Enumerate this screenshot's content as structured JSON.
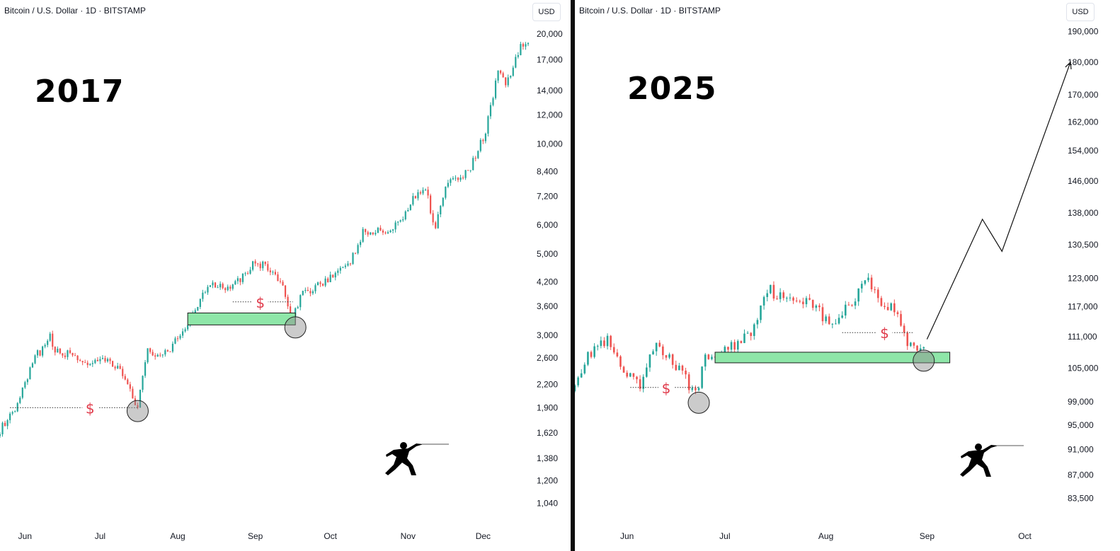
{
  "panels": [
    {
      "title": "Bitcoin / U.S. Dollar · 1D · BITSTAMP",
      "currency_button": "USD",
      "year_label": "2017",
      "dollar_labels": [
        "$",
        "$"
      ]
    },
    {
      "title": "Bitcoin / U.S. Dollar · 1D · BITSTAMP",
      "currency_button": "USD",
      "year_label": "2025",
      "dollar_labels": [
        "$",
        "$"
      ]
    }
  ],
  "colors": {
    "up": "#26a69a",
    "down": "#ef5350",
    "zone": "#8ee6a8",
    "dollar": "#e03b4b"
  },
  "chart_data": [
    {
      "type": "candlestick",
      "title": "Bitcoin / U.S. Dollar · 1D · BITSTAMP",
      "y_scale": "log",
      "ylim": [
        950,
        21000
      ],
      "y_ticks": [
        "20,000",
        "17,000",
        "14,000",
        "12,000",
        "10,000",
        "8,400",
        "7,200",
        "6,000",
        "5,000",
        "4,200",
        "3,600",
        "3,000",
        "2,600",
        "2,200",
        "1,900",
        "1,620",
        "1,380",
        "1,200",
        "1,040"
      ],
      "x_ticks": [
        "Jun",
        "Jul",
        "Aug",
        "Sep",
        "Oct",
        "Nov",
        "Dec"
      ],
      "x_range": [
        "2017-05-22",
        "2017-12-19"
      ],
      "price_path": [
        [
          "2017-05-22",
          1650
        ],
        [
          "2017-05-28",
          1850
        ],
        [
          "2017-06-05",
          2600
        ],
        [
          "2017-06-11",
          2950
        ],
        [
          "2017-06-13",
          2700
        ],
        [
          "2017-06-20",
          2650
        ],
        [
          "2017-06-27",
          2480
        ],
        [
          "2017-07-04",
          2550
        ],
        [
          "2017-07-10",
          2350
        ],
        [
          "2017-07-16",
          1920
        ],
        [
          "2017-07-20",
          2700
        ],
        [
          "2017-07-28",
          2650
        ],
        [
          "2017-08-05",
          3250
        ],
        [
          "2017-08-14",
          4200
        ],
        [
          "2017-08-20",
          4050
        ],
        [
          "2017-08-26",
          4300
        ],
        [
          "2017-09-01",
          4750
        ],
        [
          "2017-09-07",
          4550
        ],
        [
          "2017-09-12",
          4100
        ],
        [
          "2017-09-15",
          3250
        ],
        [
          "2017-09-20",
          3900
        ],
        [
          "2017-09-30",
          4300
        ],
        [
          "2017-10-08",
          4600
        ],
        [
          "2017-10-14",
          5700
        ],
        [
          "2017-10-26",
          5800
        ],
        [
          "2017-11-05",
          7400
        ],
        [
          "2017-11-08",
          7500
        ],
        [
          "2017-11-12",
          5900
        ],
        [
          "2017-11-16",
          7800
        ],
        [
          "2017-11-25",
          8400
        ],
        [
          "2017-12-02",
          10800
        ],
        [
          "2017-12-07",
          16000
        ],
        [
          "2017-12-10",
          14500
        ],
        [
          "2017-12-16",
          18500
        ],
        [
          "2017-12-19",
          19000
        ]
      ],
      "support_zone": [
        3200,
        3450
      ],
      "annotations": [
        "$",
        "$"
      ]
    },
    {
      "type": "candlestick",
      "title": "Bitcoin / U.S. Dollar · 1D · BITSTAMP",
      "y_scale": "log",
      "ylim": [
        82000,
        193000
      ],
      "y_ticks": [
        "190,000",
        "180,000",
        "170,000",
        "162,000",
        "154,000",
        "146,000",
        "138,000",
        "130,500",
        "123,000",
        "117,000",
        "111,000",
        "105,000",
        "99,000",
        "95,000",
        "91,000",
        "87,000",
        "83,500"
      ],
      "x_ticks": [
        "Jun",
        "Jul",
        "Aug",
        "Sep",
        "Oct"
      ],
      "x_range": [
        "2025-05-16",
        "2025-10-15"
      ],
      "price_path": [
        [
          "2025-05-16",
          103000
        ],
        [
          "2025-05-22",
          109000
        ],
        [
          "2025-05-26",
          110000
        ],
        [
          "2025-05-31",
          104000
        ],
        [
          "2025-06-05",
          101500
        ],
        [
          "2025-06-10",
          110000
        ],
        [
          "2025-06-17",
          104500
        ],
        [
          "2025-06-22",
          100500
        ],
        [
          "2025-06-25",
          106500
        ],
        [
          "2025-07-03",
          109000
        ],
        [
          "2025-07-09",
          112000
        ],
        [
          "2025-07-14",
          121000
        ],
        [
          "2025-07-20",
          118000
        ],
        [
          "2025-07-27",
          119000
        ],
        [
          "2025-08-02",
          113000
        ],
        [
          "2025-08-08",
          117000
        ],
        [
          "2025-08-14",
          124000
        ],
        [
          "2025-08-17",
          118000
        ],
        [
          "2025-08-22",
          116500
        ],
        [
          "2025-08-26",
          110000
        ],
        [
          "2025-08-31",
          108500
        ]
      ],
      "support_zone": [
        106000,
        108000
      ],
      "projection": [
        [
          "2025-09-01",
          110500
        ],
        [
          "2025-09-18",
          136500
        ],
        [
          "2025-09-24",
          129000
        ],
        [
          "2025-10-15",
          180000
        ]
      ],
      "annotations": [
        "$",
        "$"
      ]
    }
  ]
}
